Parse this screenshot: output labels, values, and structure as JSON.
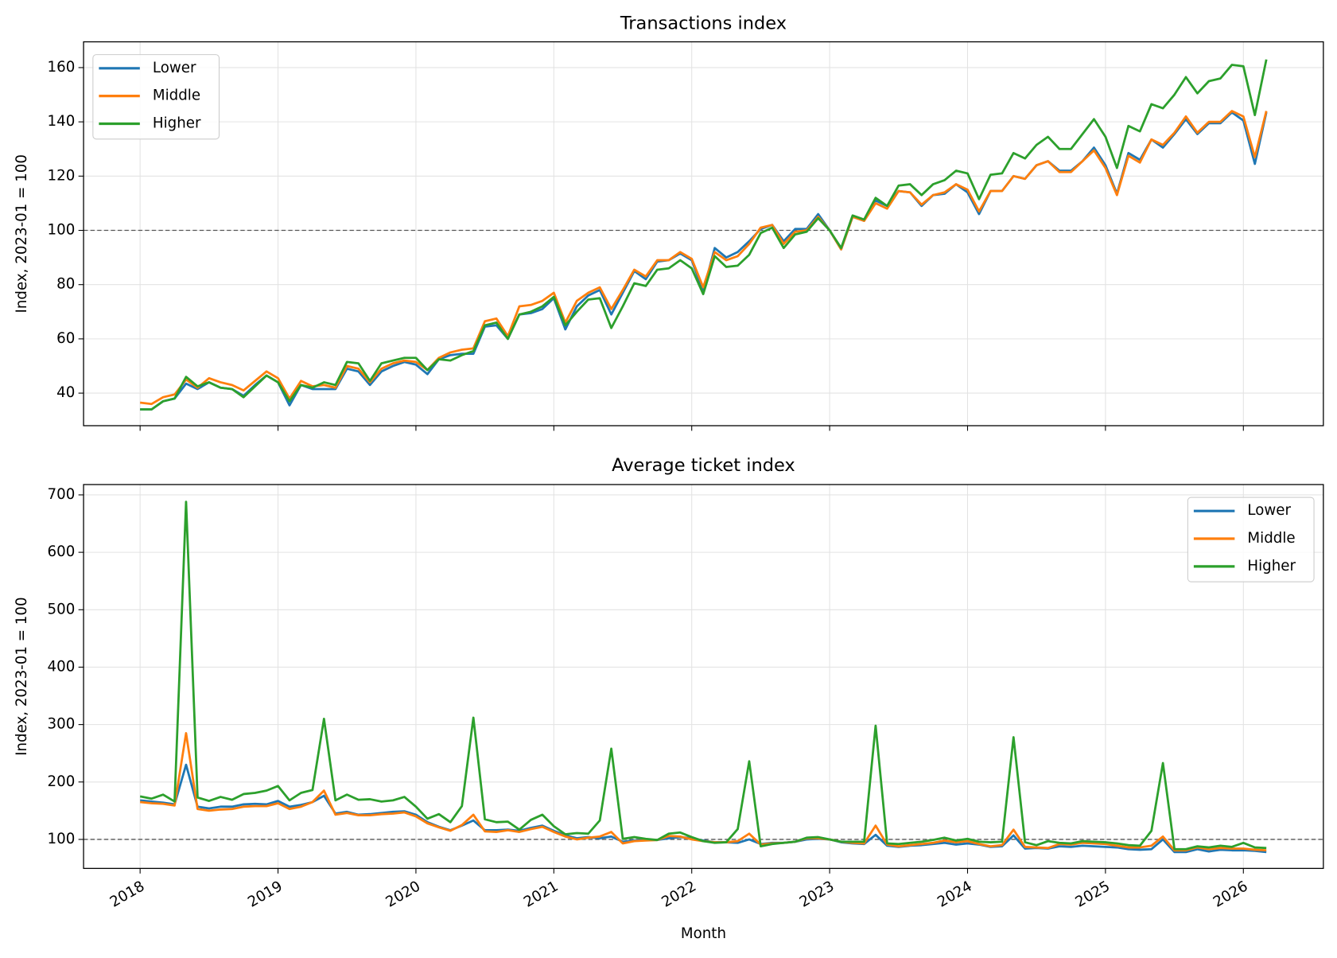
{
  "chart_data": [
    {
      "type": "line",
      "title": "Transactions index",
      "ylabel": "Index, 2023-01 = 100",
      "x": [
        "2018-01",
        "2018-02",
        "2018-03",
        "2018-04",
        "2018-05",
        "2018-06",
        "2018-07",
        "2018-08",
        "2018-09",
        "2018-10",
        "2018-11",
        "2018-12",
        "2019-01",
        "2019-02",
        "2019-03",
        "2019-04",
        "2019-05",
        "2019-06",
        "2019-07",
        "2019-08",
        "2019-09",
        "2019-10",
        "2019-11",
        "2019-12",
        "2020-01",
        "2020-02",
        "2020-03",
        "2020-04",
        "2020-05",
        "2020-06",
        "2020-07",
        "2020-08",
        "2020-09",
        "2020-10",
        "2020-11",
        "2020-12",
        "2021-01",
        "2021-02",
        "2021-03",
        "2021-04",
        "2021-05",
        "2021-06",
        "2021-07",
        "2021-08",
        "2021-09",
        "2021-10",
        "2021-11",
        "2021-12",
        "2022-01",
        "2022-02",
        "2022-03",
        "2022-04",
        "2022-05",
        "2022-06",
        "2022-07",
        "2022-08",
        "2022-09",
        "2022-10",
        "2022-11",
        "2022-12",
        "2023-01",
        "2023-02",
        "2023-03",
        "2023-04",
        "2023-05",
        "2023-06",
        "2023-07",
        "2023-08",
        "2023-09",
        "2023-10",
        "2023-11",
        "2023-12",
        "2024-01",
        "2024-02",
        "2024-03",
        "2024-04",
        "2024-05",
        "2024-06",
        "2024-07",
        "2024-08",
        "2024-09",
        "2024-10",
        "2024-11",
        "2024-12",
        "2025-01",
        "2025-02",
        "2025-03",
        "2025-04",
        "2025-05",
        "2025-06",
        "2025-07",
        "2025-08",
        "2025-09",
        "2025-10",
        "2025-11",
        "2025-12",
        "2026-01",
        "2026-02",
        "2026-03"
      ],
      "series": [
        {
          "name": "Lower",
          "color": "#1f77b4",
          "values": [
            34,
            34,
            37,
            38,
            43.5,
            41.5,
            44,
            42,
            41.5,
            39,
            43,
            46.5,
            44,
            35.5,
            43,
            41.5,
            41.5,
            41.5,
            49,
            48,
            43,
            48,
            50,
            51.5,
            50.5,
            47,
            52.5,
            54,
            54.5,
            54.5,
            64.5,
            65,
            60,
            69,
            69.5,
            71,
            75,
            63.5,
            72,
            76,
            78,
            69,
            77,
            85,
            82,
            88.5,
            89,
            91.5,
            89,
            77.5,
            93.5,
            90,
            92,
            96,
            100.5,
            102,
            96,
            100.5,
            100.5,
            106,
            100,
            93,
            105,
            103.5,
            111,
            109,
            114.5,
            114,
            109,
            113,
            113.5,
            117,
            114,
            106,
            114.5,
            114.5,
            120,
            119,
            124,
            125.5,
            122,
            122,
            125.5,
            130.5,
            124,
            113.5,
            128.5,
            126,
            133.5,
            130.5,
            135.5,
            141,
            135.5,
            139.5,
            139.5,
            143.5,
            140.5,
            124.5,
            143.5
          ]
        },
        {
          "name": "Middle",
          "color": "#ff7f0e",
          "values": [
            36.5,
            36,
            38.5,
            39.5,
            45,
            42,
            45.5,
            44,
            43,
            41,
            44.5,
            48,
            45.5,
            38,
            44.5,
            42.5,
            43,
            42,
            50,
            49,
            44,
            49,
            51,
            52,
            51.5,
            48.5,
            53,
            55,
            56,
            56.5,
            66.5,
            67.5,
            61,
            72,
            72.5,
            74,
            77,
            66,
            74,
            77,
            79,
            71,
            78,
            85.5,
            83,
            89,
            89,
            92,
            89.5,
            79,
            92,
            89,
            90.5,
            95,
            101,
            102,
            95,
            99.5,
            100,
            105,
            100,
            93,
            105,
            103.5,
            110,
            108,
            114.5,
            114,
            109.5,
            113,
            114,
            117,
            115,
            107,
            114.5,
            114.5,
            120,
            119,
            124,
            125.5,
            121.5,
            121.5,
            125.5,
            129.5,
            123,
            113,
            127.5,
            125,
            133.5,
            131.5,
            136,
            142,
            136,
            140,
            140,
            144,
            142,
            127,
            144
          ]
        },
        {
          "name": "Higher",
          "color": "#2ca02c",
          "values": [
            34,
            34,
            37,
            38,
            46,
            42.5,
            44,
            42,
            41.5,
            38.5,
            42.5,
            46.5,
            44,
            37,
            43,
            42,
            44,
            43,
            51.5,
            51,
            44.5,
            51,
            52,
            53,
            53,
            48.5,
            52.5,
            52,
            54,
            55.5,
            65,
            66,
            60,
            69,
            70,
            72,
            75.5,
            65,
            70,
            74.5,
            75,
            64,
            72,
            80.5,
            79.5,
            85.5,
            86,
            89,
            86,
            76.5,
            90.5,
            86.5,
            87,
            91,
            99,
            101,
            93.5,
            98.5,
            99.5,
            104.5,
            100,
            93.5,
            105.5,
            104,
            112,
            109,
            116.5,
            117,
            113,
            117,
            118.5,
            122,
            121,
            111.5,
            120.5,
            121,
            128.5,
            126.5,
            131.5,
            134.5,
            130,
            130,
            135.5,
            141,
            134.5,
            123,
            138.5,
            136.5,
            146.5,
            145,
            150,
            156.5,
            150.5,
            155,
            156,
            161,
            160.5,
            142.5,
            163
          ]
        }
      ],
      "xlim": [
        2017.59,
        2026.58
      ],
      "xticks": [
        2018,
        2019,
        2020,
        2021,
        2022,
        2023,
        2024,
        2025,
        2026
      ],
      "show_xtick_labels": false,
      "ylim": [
        28,
        169.5
      ],
      "yticks": [
        40,
        60,
        80,
        100,
        120,
        140,
        160
      ],
      "reference_line": 100,
      "grid": true,
      "legend": "upper left"
    },
    {
      "type": "line",
      "title": "Average ticket index",
      "ylabel": "Index, 2023-01 = 100",
      "xlabel": "Month",
      "x": [
        "2018-01",
        "2018-02",
        "2018-03",
        "2018-04",
        "2018-05",
        "2018-06",
        "2018-07",
        "2018-08",
        "2018-09",
        "2018-10",
        "2018-11",
        "2018-12",
        "2019-01",
        "2019-02",
        "2019-03",
        "2019-04",
        "2019-05",
        "2019-06",
        "2019-07",
        "2019-08",
        "2019-09",
        "2019-10",
        "2019-11",
        "2019-12",
        "2020-01",
        "2020-02",
        "2020-03",
        "2020-04",
        "2020-05",
        "2020-06",
        "2020-07",
        "2020-08",
        "2020-09",
        "2020-10",
        "2020-11",
        "2020-12",
        "2021-01",
        "2021-02",
        "2021-03",
        "2021-04",
        "2021-05",
        "2021-06",
        "2021-07",
        "2021-08",
        "2021-09",
        "2021-10",
        "2021-11",
        "2021-12",
        "2022-01",
        "2022-02",
        "2022-03",
        "2022-04",
        "2022-05",
        "2022-06",
        "2022-07",
        "2022-08",
        "2022-09",
        "2022-10",
        "2022-11",
        "2022-12",
        "2023-01",
        "2023-02",
        "2023-03",
        "2023-04",
        "2023-05",
        "2023-06",
        "2023-07",
        "2023-08",
        "2023-09",
        "2023-10",
        "2023-11",
        "2023-12",
        "2024-01",
        "2024-02",
        "2024-03",
        "2024-04",
        "2024-05",
        "2024-06",
        "2024-07",
        "2024-08",
        "2024-09",
        "2024-10",
        "2024-11",
        "2024-12",
        "2025-01",
        "2025-02",
        "2025-03",
        "2025-04",
        "2025-05",
        "2025-06",
        "2025-07",
        "2025-08",
        "2025-09",
        "2025-10",
        "2025-11",
        "2025-12",
        "2026-01",
        "2026-02",
        "2026-03"
      ],
      "series": [
        {
          "name": "Lower",
          "color": "#1f77b4",
          "values": [
            168,
            166,
            164,
            161,
            230,
            157,
            154,
            157,
            157,
            161,
            162,
            161,
            167,
            157,
            160,
            165,
            176,
            145,
            148,
            143,
            144,
            146,
            148,
            149,
            143,
            130,
            122,
            116,
            124,
            133,
            116,
            116,
            117,
            115,
            120,
            124,
            115,
            107,
            102,
            104,
            102,
            105,
            96,
            98,
            99,
            99,
            102,
            104,
            102,
            98,
            95,
            95,
            94,
            100,
            92,
            94,
            94,
            96,
            100,
            101,
            100,
            95,
            93,
            92,
            108,
            89,
            87,
            89,
            90,
            92,
            94,
            91,
            93,
            91,
            87,
            88,
            107,
            84,
            85,
            84,
            88,
            87,
            89,
            88,
            87,
            86,
            83,
            82,
            83,
            100,
            78,
            78,
            83,
            79,
            82,
            81,
            81,
            80,
            78
          ]
        },
        {
          "name": "Middle",
          "color": "#ff7f0e",
          "values": [
            165,
            163,
            162,
            159,
            285,
            153,
            150,
            152,
            153,
            157,
            158,
            158,
            163,
            153,
            157,
            165,
            185,
            143,
            146,
            142,
            142,
            144,
            145,
            147,
            140,
            128,
            121,
            115,
            125,
            143,
            114,
            113,
            116,
            113,
            118,
            122,
            113,
            105,
            100,
            103,
            105,
            113,
            93,
            97,
            98,
            99,
            106,
            105,
            100,
            97,
            95,
            95,
            97,
            110,
            91,
            93,
            94,
            96,
            102,
            102,
            100,
            96,
            94,
            93,
            124,
            91,
            88,
            90,
            92,
            94,
            98,
            95,
            97,
            92,
            88,
            90,
            117,
            87,
            86,
            85,
            92,
            91,
            94,
            93,
            92,
            89,
            86,
            86,
            89,
            105,
            81,
            81,
            86,
            83,
            85,
            84,
            84,
            82,
            81
          ]
        },
        {
          "name": "Higher",
          "color": "#2ca02c",
          "values": [
            175,
            171,
            178,
            166,
            688,
            173,
            167,
            174,
            169,
            179,
            181,
            185,
            193,
            168,
            181,
            186,
            310,
            168,
            178,
            169,
            170,
            166,
            168,
            174,
            157,
            136,
            144,
            130,
            158,
            312,
            135,
            130,
            131,
            117,
            134,
            143,
            123,
            109,
            111,
            110,
            133,
            258,
            101,
            104,
            101,
            99,
            110,
            112,
            104,
            97,
            94,
            95,
            118,
            236,
            88,
            92,
            94,
            96,
            103,
            104,
            100,
            96,
            96,
            96,
            298,
            93,
            92,
            94,
            96,
            99,
            103,
            98,
            101,
            96,
            95,
            96,
            278,
            95,
            90,
            97,
            94,
            93,
            97,
            96,
            95,
            93,
            90,
            89,
            115,
            233,
            83,
            83,
            88,
            86,
            89,
            87,
            94,
            86,
            85
          ]
        }
      ],
      "xlim": [
        2017.59,
        2026.58
      ],
      "xticks": [
        2018,
        2019,
        2020,
        2021,
        2022,
        2023,
        2024,
        2025,
        2026
      ],
      "show_xtick_labels": true,
      "ylim": [
        49.5,
        718
      ],
      "yticks": [
        100,
        200,
        300,
        400,
        500,
        600,
        700
      ],
      "reference_line": 100,
      "grid": true,
      "legend": "upper right"
    }
  ]
}
